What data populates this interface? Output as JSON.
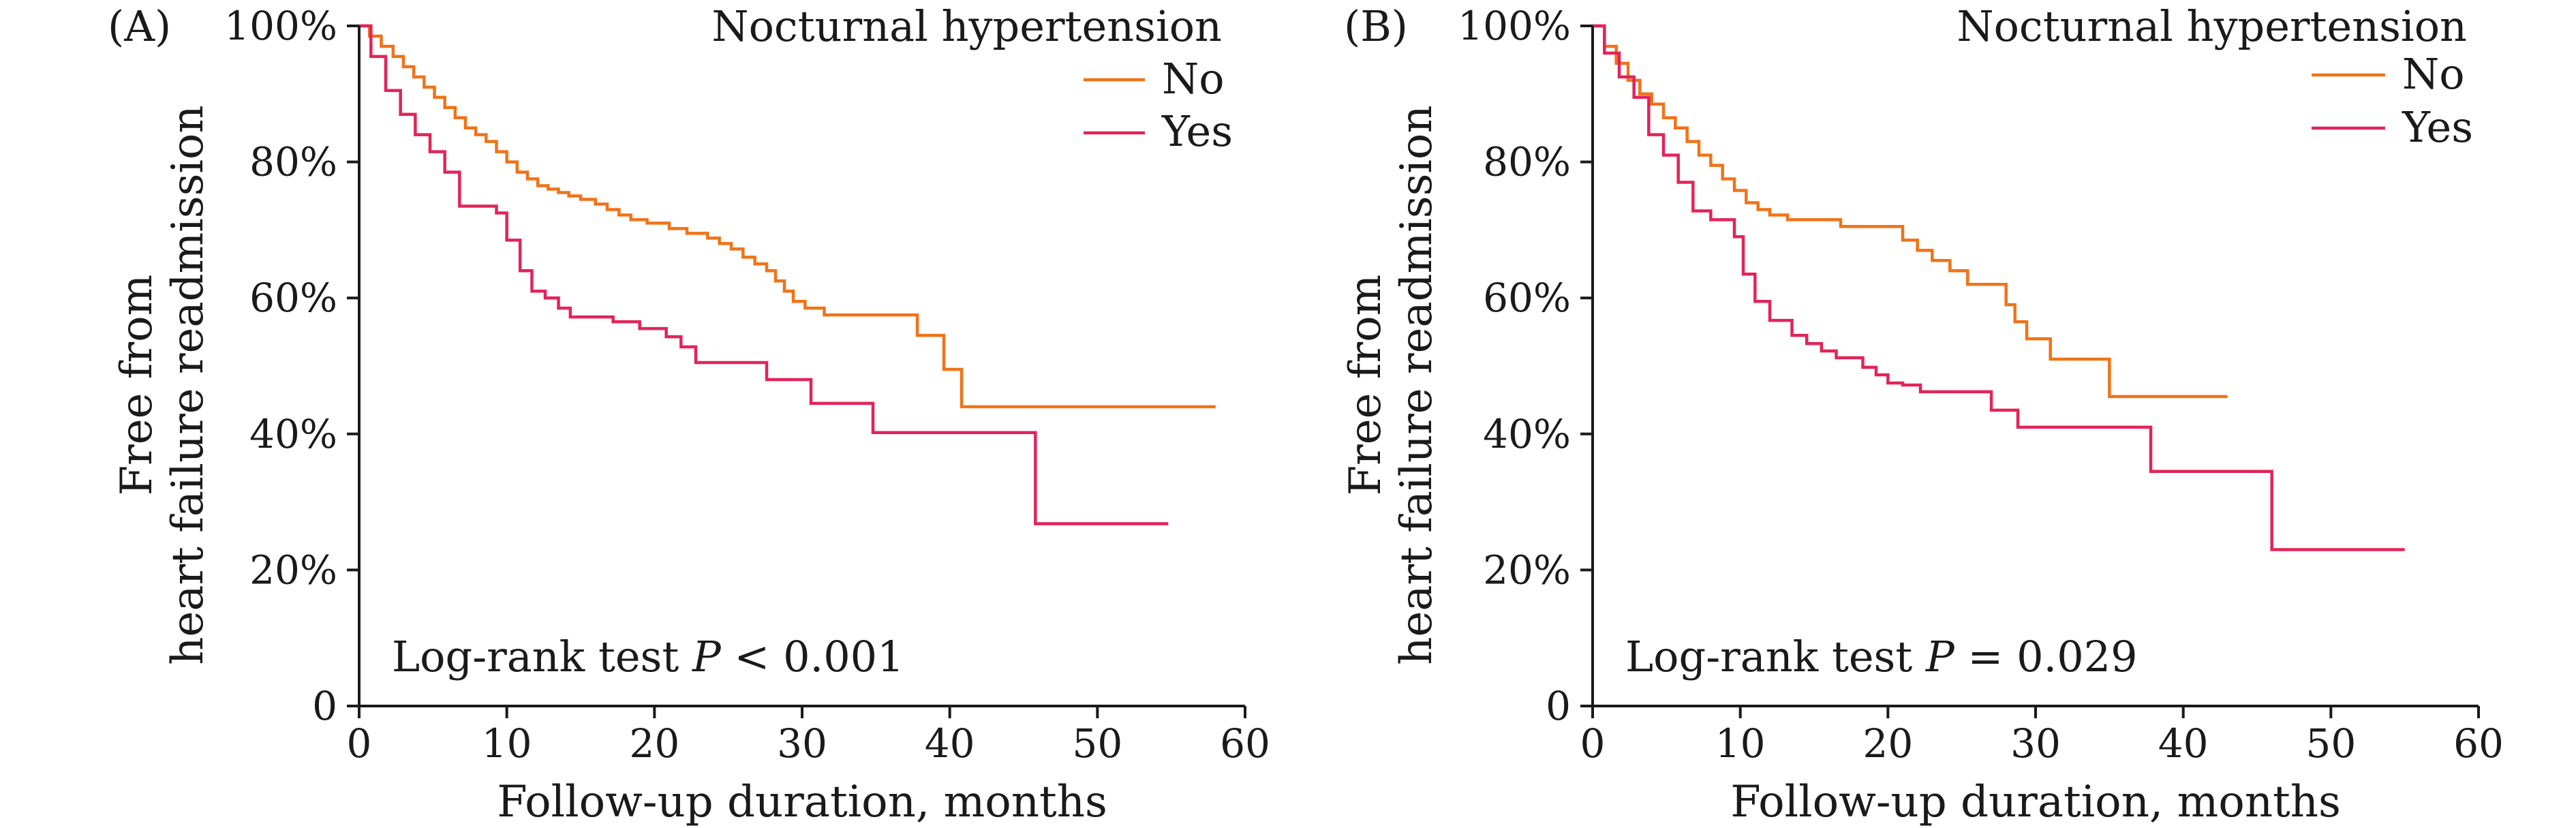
{
  "colors": {
    "no": "#f07318",
    "yes": "#e2245a",
    "axis": "#1a1a1a"
  },
  "chart_data": [
    {
      "type": "line",
      "panel_label": "(A)",
      "xlabel": "Follow-up duration, months",
      "ylabel_line1": "Free from",
      "ylabel_line2": "heart failure readmission",
      "xlim": [
        0,
        60
      ],
      "ylim": [
        0,
        1
      ],
      "x_ticks": [
        0,
        10,
        20,
        30,
        40,
        50,
        60
      ],
      "x_tick_labels": [
        "0",
        "10",
        "20",
        "30",
        "40",
        "50",
        "60"
      ],
      "y_ticks": [
        0,
        0.2,
        0.4,
        0.6,
        0.8,
        1.0
      ],
      "y_tick_labels": [
        "0",
        "20%",
        "40%",
        "60%",
        "80%",
        "100%"
      ],
      "legend_title": "Nocturnal hypertension",
      "legend_position": "top-right",
      "annotation_prefix": "Log-rank test ",
      "annotation_italic": "P",
      "annotation_suffix": " < 0.001",
      "series": [
        {
          "name": "No",
          "color_key": "no",
          "x": [
            0,
            0.7,
            1.5,
            2.3,
            3,
            3.7,
            4.4,
            5.1,
            5.8,
            6.5,
            7.2,
            7.9,
            8.6,
            9.3,
            10,
            10.7,
            11.4,
            12.1,
            12.8,
            13.5,
            14.2,
            15,
            16,
            16.8,
            17.6,
            18.4,
            19.5,
            21,
            22.2,
            23.6,
            24.4,
            25.2,
            26,
            26.8,
            27.6,
            28.2,
            28.8,
            29.4,
            30.2,
            31.5,
            37.8,
            39.6,
            40.8,
            58
          ],
          "y": [
            1.0,
            0.985,
            0.97,
            0.955,
            0.94,
            0.925,
            0.91,
            0.895,
            0.88,
            0.865,
            0.85,
            0.84,
            0.83,
            0.815,
            0.8,
            0.785,
            0.775,
            0.765,
            0.76,
            0.755,
            0.75,
            0.745,
            0.738,
            0.73,
            0.722,
            0.715,
            0.71,
            0.702,
            0.695,
            0.688,
            0.68,
            0.672,
            0.66,
            0.65,
            0.64,
            0.625,
            0.61,
            0.595,
            0.585,
            0.575,
            0.545,
            0.495,
            0.44,
            0.44
          ]
        },
        {
          "name": "Yes",
          "color_key": "yes",
          "x": [
            0,
            0.8,
            1.8,
            2.8,
            3.8,
            4.8,
            5.8,
            6.8,
            9.3,
            10,
            10.9,
            11.7,
            12.6,
            13.5,
            14.3,
            17.2,
            19,
            20.8,
            21.8,
            22.8,
            27.6,
            30.6,
            34.8,
            45.8,
            54.8
          ],
          "y": [
            1.0,
            0.955,
            0.905,
            0.87,
            0.84,
            0.815,
            0.785,
            0.735,
            0.725,
            0.685,
            0.64,
            0.61,
            0.6,
            0.585,
            0.572,
            0.565,
            0.555,
            0.543,
            0.528,
            0.505,
            0.48,
            0.445,
            0.402,
            0.268,
            0.268
          ]
        }
      ]
    },
    {
      "type": "line",
      "panel_label": "(B)",
      "xlabel": "Follow-up duration, months",
      "ylabel_line1": "Free from",
      "ylabel_line2": "heart failure readmission",
      "xlim": [
        0,
        60
      ],
      "ylim": [
        0,
        1
      ],
      "x_ticks": [
        0,
        10,
        20,
        30,
        40,
        50,
        60
      ],
      "x_tick_labels": [
        "0",
        "10",
        "20",
        "30",
        "40",
        "50",
        "60"
      ],
      "y_ticks": [
        0,
        0.2,
        0.4,
        0.6,
        0.8,
        1.0
      ],
      "y_tick_labels": [
        "0",
        "20%",
        "40%",
        "60%",
        "80%",
        "100%"
      ],
      "legend_title": "Nocturnal hypertension",
      "legend_position": "top-right",
      "annotation_prefix": "Log-rank test ",
      "annotation_italic": "P",
      "annotation_suffix": " = 0.029",
      "series": [
        {
          "name": "No",
          "color_key": "no",
          "x": [
            0,
            0.8,
            1.6,
            2.4,
            3.2,
            4,
            4.8,
            5.6,
            6.4,
            7.2,
            8,
            8.8,
            9.6,
            10.4,
            11.2,
            12,
            13.2,
            16.8,
            21,
            22,
            23,
            24.2,
            25.4,
            28,
            28.6,
            29.4,
            31,
            35,
            43
          ],
          "y": [
            1.0,
            0.97,
            0.945,
            0.92,
            0.9,
            0.885,
            0.865,
            0.85,
            0.83,
            0.81,
            0.795,
            0.775,
            0.758,
            0.74,
            0.73,
            0.722,
            0.715,
            0.705,
            0.685,
            0.67,
            0.655,
            0.64,
            0.62,
            0.59,
            0.565,
            0.54,
            0.51,
            0.455,
            0.455
          ]
        },
        {
          "name": "Yes",
          "color_key": "yes",
          "x": [
            0,
            0.8,
            1.8,
            2.8,
            3.8,
            4.8,
            5.8,
            6.8,
            8,
            9.6,
            10.2,
            11,
            12,
            13.5,
            14.5,
            15.5,
            16.5,
            18.3,
            19.2,
            20,
            21,
            22.2,
            27,
            28.8,
            37.8,
            46,
            55
          ],
          "y": [
            1.0,
            0.96,
            0.925,
            0.895,
            0.84,
            0.81,
            0.77,
            0.728,
            0.715,
            0.69,
            0.635,
            0.595,
            0.567,
            0.545,
            0.533,
            0.522,
            0.512,
            0.498,
            0.487,
            0.475,
            0.472,
            0.462,
            0.435,
            0.41,
            0.345,
            0.23,
            0.23
          ]
        }
      ]
    }
  ]
}
